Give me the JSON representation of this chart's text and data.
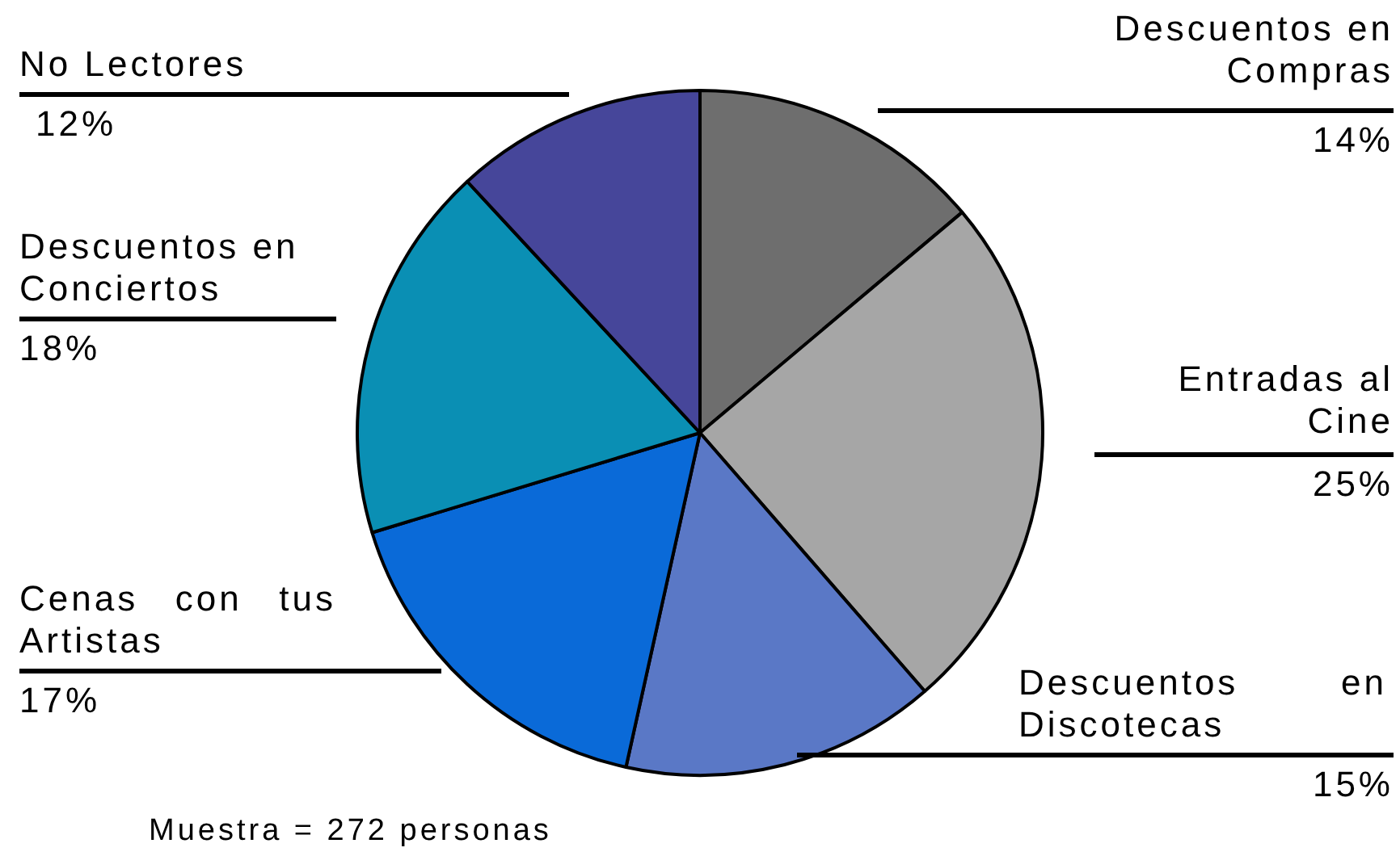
{
  "chart_data": {
    "type": "pie",
    "categories": [
      "Descuentos en Compras",
      "Entradas al Cine",
      "Descuentos en Discotecas",
      "Cenas con tus Artistas",
      "Descuentos en Conciertos",
      "No Lectores"
    ],
    "values": [
      14,
      25,
      15,
      17,
      18,
      12
    ],
    "value_labels": [
      "14%",
      "25%",
      "15%",
      "17%",
      "18%",
      "12%"
    ],
    "colors": [
      "#6e6e6e",
      "#a6a6a6",
      "#5a78c6",
      "#0a6ad8",
      "#0a8fb4",
      "#46469a"
    ],
    "legend": false,
    "annotations": [
      "Muestra = 272 personas"
    ]
  }
}
